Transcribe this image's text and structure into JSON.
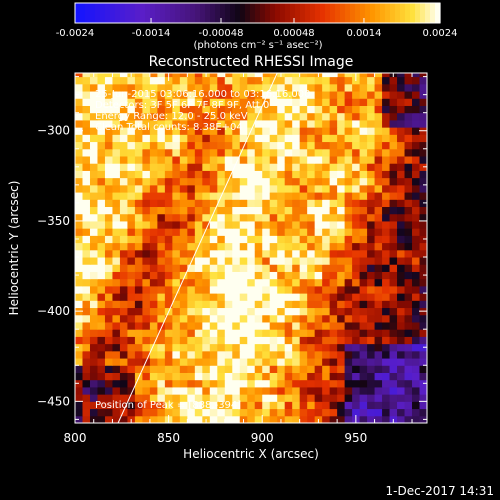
{
  "chart_data": {
    "type": "heatmap",
    "title": "Reconstructed RHESSI Image",
    "xlabel": "Heliocentric X (arcsec)",
    "ylabel": "Heliocentric Y (arcsec)",
    "xlim": [
      800,
      988
    ],
    "ylim": [
      -462,
      -268
    ],
    "x_ticks": [
      800,
      850,
      900,
      950
    ],
    "y_ticks": [
      -300,
      -350,
      -400,
      -450
    ],
    "colorbar": {
      "ticks": [
        "-0.0024",
        "-0.0014",
        "-0.00048",
        "0.00048",
        "0.0014",
        "0.0024"
      ],
      "tick_values": [
        -0.0024,
        -0.0014,
        -0.00048,
        0.00048,
        0.0014,
        0.0024
      ],
      "range": [
        -0.0024,
        0.0024
      ],
      "unit_text": "(photons cm⁻² s⁻¹ asec⁻²)"
    },
    "annotations": [
      "25-Jun-2015 03:06:16.000 to 03:16:16.000",
      "Detectors: 3F 5F 6F 7F 8F 9F, Att 0",
      "Energy Range: 12.0 - 25.0 keV",
      "Clean     Total counts: 8.38E+04"
    ],
    "peak_label": "Position of Peak = [888,-394]",
    "limb_line": [
      [
        823,
        -462
      ],
      [
        908,
        -268
      ]
    ],
    "bands": [
      {
        "x_at_-270": 775,
        "x_at_-460": 715,
        "width": 50,
        "strength": 0.75
      },
      {
        "x_at_-270": 840,
        "x_at_-460": 760,
        "width": 38,
        "strength": 0.85
      },
      {
        "x_at_-270": 910,
        "x_at_-460": 855,
        "width": 32,
        "strength": 1.0
      },
      {
        "x_at_-270": 960,
        "x_at_-460": 900,
        "width": 26,
        "strength": 0.7
      }
    ],
    "peak": [
      888,
      -394
    ]
  },
  "footer": {
    "date": "1-Dec-2017 14:31"
  }
}
